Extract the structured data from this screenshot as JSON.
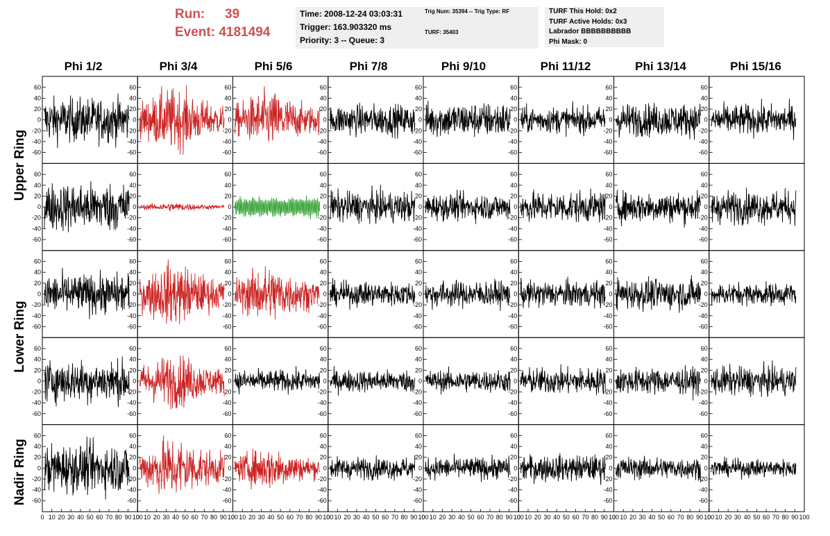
{
  "run": {
    "label": "Run:",
    "value": "39"
  },
  "event": {
    "label": "Event:",
    "value": "4181494"
  },
  "info_panel": {
    "time": "Time: 2008-12-24 03:03:31",
    "trigger": "Trigger: 163.903320 ms",
    "priority": "Priority: 3 -- Queue: 3"
  },
  "trig_panel": {
    "trig_line": "Trig Num: 35394 -- Trig Type: RF",
    "turf_line": "TURF: 35403"
  },
  "turf_panel": {
    "this_hold": "TURF This Hold: 0x2",
    "active_holds": "TURF Active Holds: 0x3",
    "labrador": "Labrador BBBBBBBBBB",
    "phi_mask": "Phi Mask: 0"
  },
  "columns": [
    "Phi 1/2",
    "Phi 3/4",
    "Phi 5/6",
    "Phi 7/8",
    "Phi 9/10",
    "Phi 11/12",
    "Phi 13/14",
    "Phi 15/16"
  ],
  "ring_labels": [
    "Upper Ring",
    "Lower Ring",
    "Nadir Ring"
  ],
  "colors": {
    "normal": "#000000",
    "triggered": "#cc2222",
    "green": "#229922"
  },
  "chart_data": {
    "type": "line",
    "rows": 5,
    "cols": 8,
    "ylim": [
      -70,
      70
    ],
    "yticks": [
      -60,
      -40,
      -20,
      0,
      20,
      40,
      60
    ],
    "xlim": [
      0,
      100
    ],
    "xticks": [
      0,
      10,
      20,
      30,
      40,
      50,
      60,
      70,
      80,
      90,
      100
    ],
    "samples_per_trace": 260,
    "grid": false,
    "panel_color": [
      [
        "normal",
        "triggered",
        "triggered",
        "normal",
        "normal",
        "normal",
        "normal",
        "normal"
      ],
      [
        "normal",
        "triggered",
        "green",
        "normal",
        "normal",
        "normal",
        "normal",
        "normal"
      ],
      [
        "normal",
        "triggered",
        "triggered",
        "normal",
        "normal",
        "normal",
        "normal",
        "normal"
      ],
      [
        "normal",
        "triggered",
        "normal",
        "normal",
        "normal",
        "normal",
        "normal",
        "normal"
      ],
      [
        "normal",
        "triggered",
        "triggered",
        "normal",
        "normal",
        "normal",
        "normal",
        "normal"
      ]
    ],
    "panel_amplitude": [
      [
        20,
        22,
        20,
        14,
        16,
        12,
        15,
        14
      ],
      [
        22,
        3,
        16,
        14,
        12,
        14,
        14,
        15
      ],
      [
        18,
        22,
        20,
        11,
        12,
        12,
        14,
        10
      ],
      [
        19,
        19,
        10,
        10,
        10,
        12,
        12,
        13
      ],
      [
        22,
        22,
        15,
        10,
        10,
        12,
        10,
        8
      ]
    ]
  }
}
